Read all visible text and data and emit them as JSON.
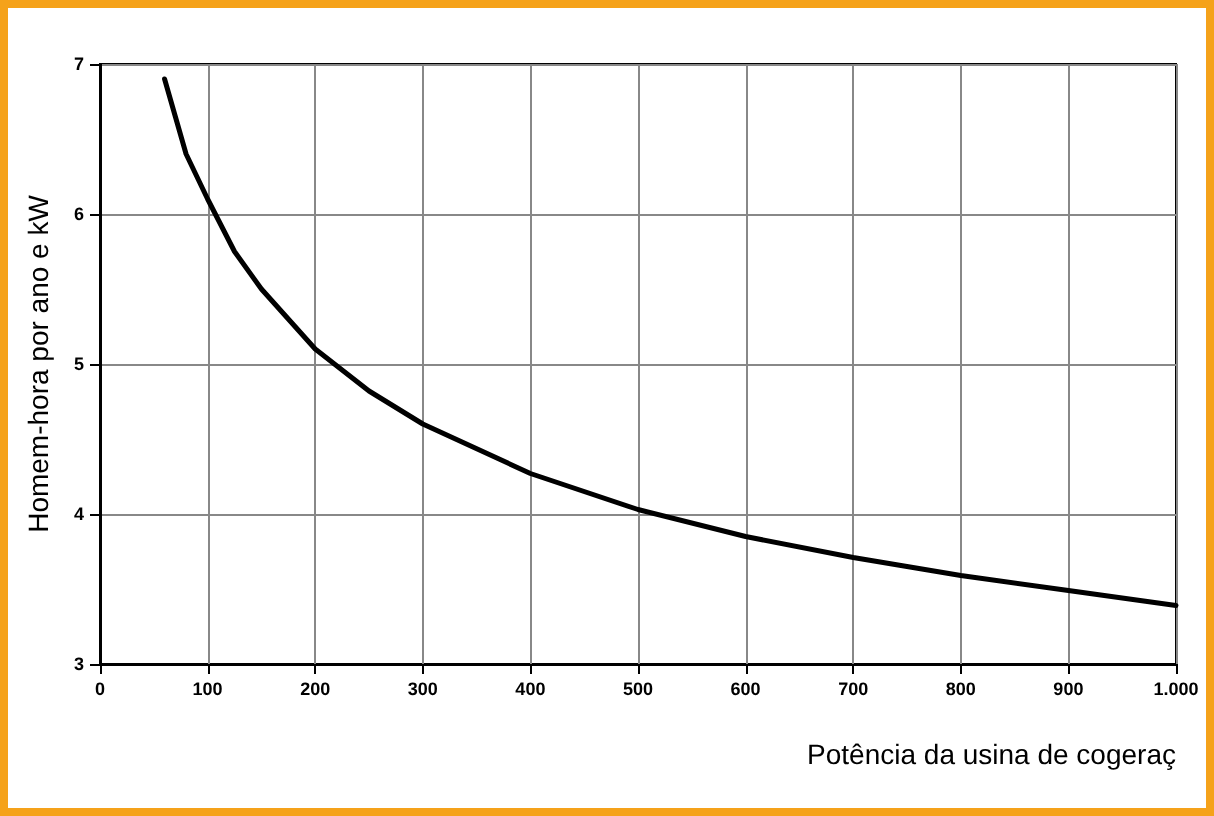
{
  "chart_data": {
    "type": "line",
    "xlabel": "Potência da usina de cogeraç",
    "ylabel": "Homem-hora por ano e kW",
    "x": [
      60,
      70,
      80,
      100,
      125,
      150,
      200,
      250,
      300,
      400,
      500,
      600,
      700,
      800,
      900,
      1000
    ],
    "series": [
      {
        "color": "#000000",
        "values": [
          6.9,
          6.65,
          6.4,
          6.1,
          5.75,
          5.5,
          5.1,
          4.82,
          4.6,
          4.27,
          4.03,
          3.85,
          3.71,
          3.59,
          3.49,
          3.39
        ]
      }
    ],
    "xlim": [
      0,
      1000
    ],
    "xticks": [
      0,
      100,
      200,
      300,
      400,
      500,
      600,
      700,
      800,
      900,
      {
        "value": 1000,
        "label": "1.000"
      }
    ],
    "ylim": [
      3,
      7
    ],
    "yticks": [
      3,
      4,
      5,
      6,
      7
    ],
    "grid": true,
    "marker": "none",
    "line_style": "solid"
  }
}
